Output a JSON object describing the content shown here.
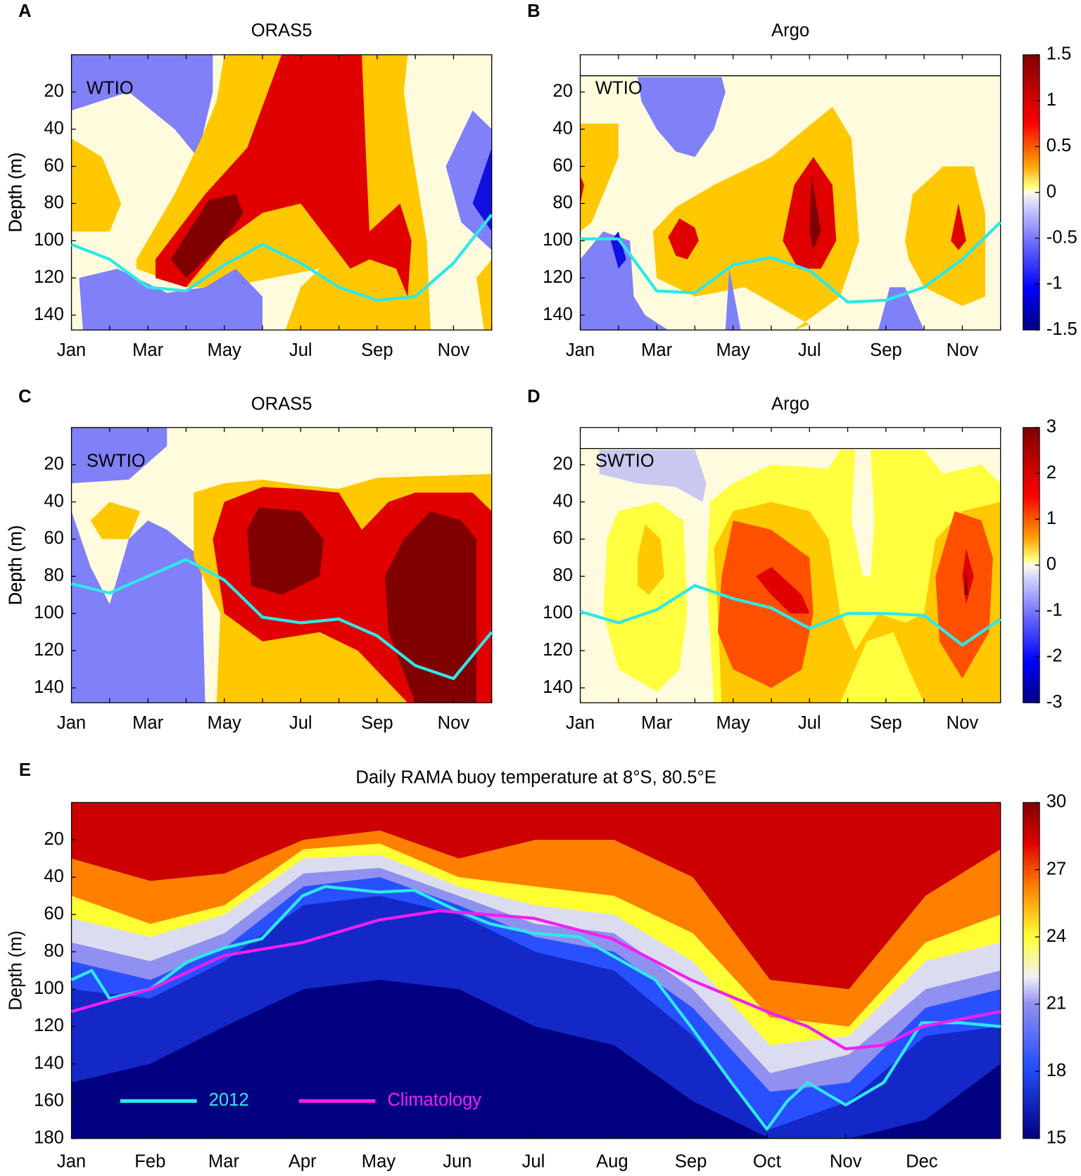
{
  "chart_data": [
    {
      "type": "line",
      "label": "A",
      "title": "ORAS5",
      "region": "WTIO",
      "ylabel": "Depth (m)",
      "categories": [
        "Jan",
        null,
        "Mar",
        null,
        "May",
        null,
        "Jul",
        null,
        "Sep",
        null,
        "Nov",
        null
      ],
      "series": [
        {
          "color": "#2ee8e8",
          "values": [
            102,
            110,
            125,
            127,
            113,
            102,
            112,
            125,
            132,
            130,
            112,
            86
          ]
        }
      ],
      "ylim": [
        0,
        148
      ],
      "yticks": [
        20,
        40,
        60,
        80,
        100,
        120,
        140
      ]
    },
    {
      "type": "line",
      "label": "B",
      "title": "Argo",
      "region": "WTIO",
      "ylabel": "Depth (m)",
      "categories": [
        "Jan",
        null,
        "Mar",
        null,
        "May",
        null,
        "Jul",
        null,
        "Sep",
        null,
        "Nov",
        null
      ],
      "series": [
        {
          "color": "#2ee8e8",
          "values": [
            99,
            99,
            127,
            128,
            113,
            109,
            116,
            133,
            132,
            125,
            110,
            90
          ]
        }
      ],
      "ylim": [
        0,
        148
      ],
      "yticks": [
        20,
        40,
        60,
        80,
        100,
        120,
        140
      ],
      "colorbar": {
        "lim": [
          -1.5,
          1.5
        ],
        "ticks": [
          1.5,
          1,
          0.5,
          0,
          -0.5,
          -1,
          -1.5
        ]
      }
    },
    {
      "type": "line",
      "label": "C",
      "title": "ORAS5",
      "region": "SWTIO",
      "ylabel": "Depth (m)",
      "categories": [
        "Jan",
        null,
        "Mar",
        null,
        "May",
        null,
        "Jul",
        null,
        "Sep",
        null,
        "Nov",
        null
      ],
      "series": [
        {
          "color": "#2ee8e8",
          "values": [
            84,
            89,
            80,
            71,
            82,
            102,
            105,
            103,
            112,
            128,
            135,
            110
          ]
        }
      ],
      "ylim": [
        0,
        148
      ],
      "yticks": [
        20,
        40,
        60,
        80,
        100,
        120,
        140
      ]
    },
    {
      "type": "line",
      "label": "D",
      "title": "Argo",
      "region": "SWTIO",
      "ylabel": "Depth (m)",
      "categories": [
        "Jan",
        null,
        "Mar",
        null,
        "May",
        null,
        "Jul",
        null,
        "Sep",
        null,
        "Nov",
        null
      ],
      "series": [
        {
          "color": "#2ee8e8",
          "values": [
            99,
            105,
            98,
            85,
            92,
            97,
            108,
            100,
            100,
            101,
            117,
            103
          ]
        }
      ],
      "ylim": [
        0,
        148
      ],
      "yticks": [
        20,
        40,
        60,
        80,
        100,
        120,
        140
      ],
      "colorbar": {
        "lim": [
          -3,
          3
        ],
        "ticks": [
          3,
          2,
          1,
          0,
          -1,
          -2,
          -3
        ]
      }
    },
    {
      "type": "line",
      "label": "E",
      "title": "Daily RAMA buoy temperature at 8°S, 80.5°E",
      "ylabel": "Depth  (m)",
      "xlim": [
        0,
        366
      ],
      "xticks": [
        {
          "value": 0,
          "label": "Jan"
        },
        {
          "value": 31,
          "label": "Feb"
        },
        {
          "value": 60,
          "label": "Mar"
        },
        {
          "value": 91,
          "label": "Apr"
        },
        {
          "value": 121,
          "label": "May"
        },
        {
          "value": 152,
          "label": "Jun"
        },
        {
          "value": 182,
          "label": "Jul"
        },
        {
          "value": 213,
          "label": "Aug"
        },
        {
          "value": 244,
          "label": "Sep"
        },
        {
          "value": 274,
          "label": "Oct"
        },
        {
          "value": 305,
          "label": "Nov"
        },
        {
          "value": 335,
          "label": "Dec"
        }
      ],
      "series": [
        {
          "name": "2012",
          "color": "#2ee8e8",
          "x": [
            0,
            8,
            15,
            31,
            46,
            60,
            75,
            91,
            100,
            121,
            135,
            152,
            165,
            182,
            200,
            213,
            230,
            244,
            260,
            274,
            282,
            290,
            305,
            320,
            335,
            350,
            366
          ],
          "values": [
            95,
            90,
            105,
            100,
            85,
            78,
            73,
            50,
            45,
            48,
            47,
            58,
            65,
            70,
            72,
            82,
            95,
            120,
            150,
            175,
            160,
            150,
            162,
            150,
            118,
            118,
            120
          ]
        },
        {
          "name": "Climatology",
          "color": "#f020f0",
          "x": [
            0,
            31,
            60,
            91,
            121,
            145,
            182,
            213,
            244,
            274,
            290,
            305,
            320,
            335,
            366
          ],
          "values": [
            112,
            100,
            82,
            75,
            63,
            58,
            62,
            73,
            95,
            112,
            120,
            132,
            130,
            120,
            112
          ]
        }
      ],
      "ylim": [
        0,
        180
      ],
      "yticks": [
        20,
        40,
        60,
        80,
        100,
        120,
        140,
        160,
        180
      ],
      "colorbar": {
        "lim": [
          15,
          30
        ],
        "ticks": [
          30,
          27,
          24,
          21,
          18,
          15
        ]
      }
    }
  ]
}
